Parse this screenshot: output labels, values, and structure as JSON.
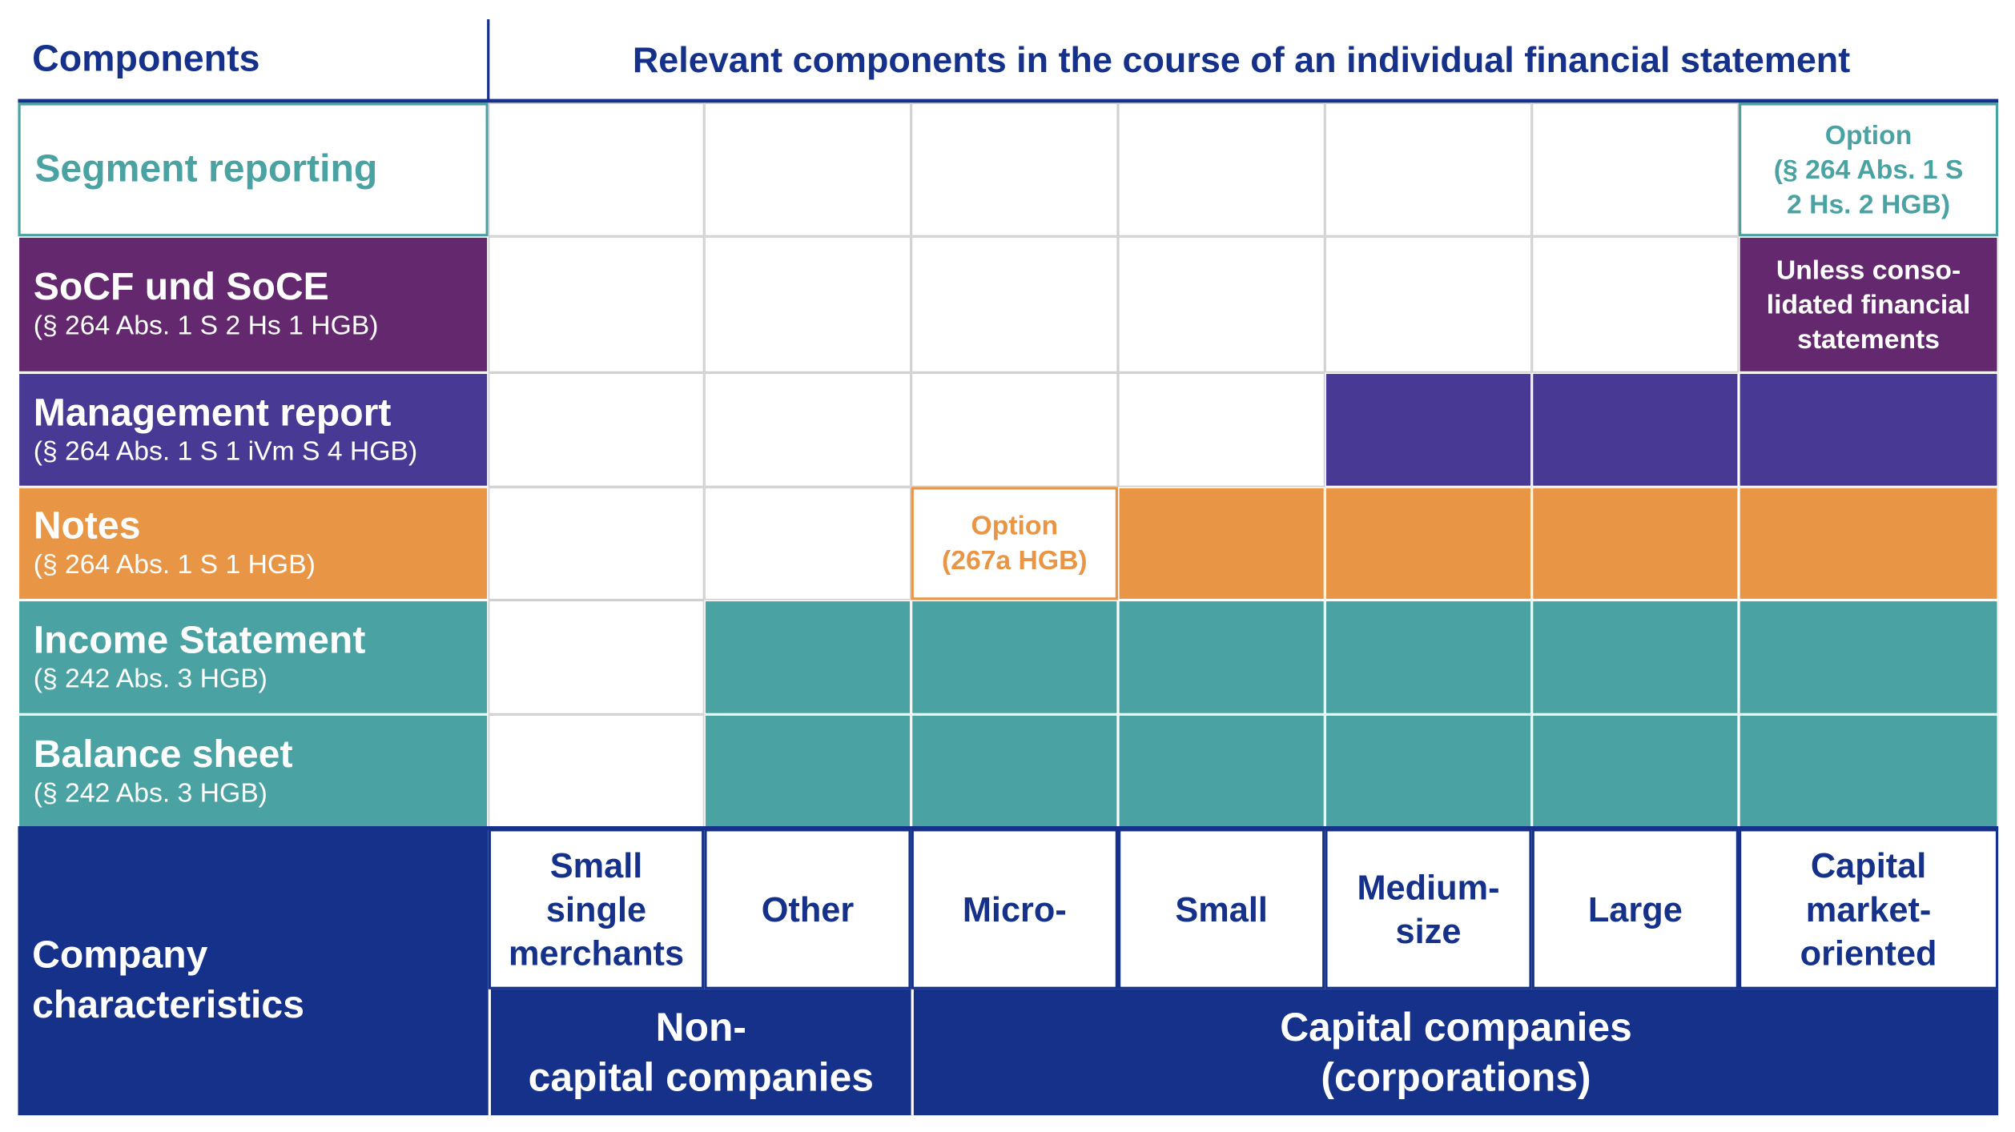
{
  "header": {
    "components": "Components",
    "title": "Relevant components in the course of an individual financial statement"
  },
  "rows": [
    {
      "label": "Segment reporting",
      "note": [
        "Option",
        "(§ 264 Abs. 1 S",
        "2 Hs. 2 HGB)"
      ]
    },
    {
      "label": "SoCF und SoCE",
      "reference": "(§ 264 Abs. 1 S 2 Hs 1 HGB)",
      "note": [
        "Unless conso-",
        "lidated financial",
        "statements"
      ]
    },
    {
      "label": "Management report",
      "reference": "(§ 264 Abs. 1 S 1 iVm S 4 HGB)"
    },
    {
      "label": "Notes",
      "reference": "(§ 264 Abs. 1 S 1 HGB)",
      "note": [
        "Option",
        "(267a HGB)"
      ]
    },
    {
      "label": "Income Statement",
      "reference": "(§ 242 Abs. 3 HGB)"
    },
    {
      "label": "Balance sheet",
      "reference": "(§ 242 Abs. 3 HGB)"
    }
  ],
  "characteristics": {
    "label": [
      "Company",
      "characteristics"
    ],
    "categories": [
      [
        "Small",
        "single",
        "merchants"
      ],
      [
        "Other"
      ],
      [
        "Micro-"
      ],
      [
        "Small"
      ],
      [
        "Medium-",
        "size"
      ],
      [
        "Large"
      ],
      [
        "Capital",
        "market-",
        "oriented"
      ]
    ],
    "groups": [
      {
        "label": [
          "Non-",
          "capital companies"
        ]
      },
      {
        "label": [
          "Capital companies",
          "(corporations)"
        ]
      }
    ]
  }
}
